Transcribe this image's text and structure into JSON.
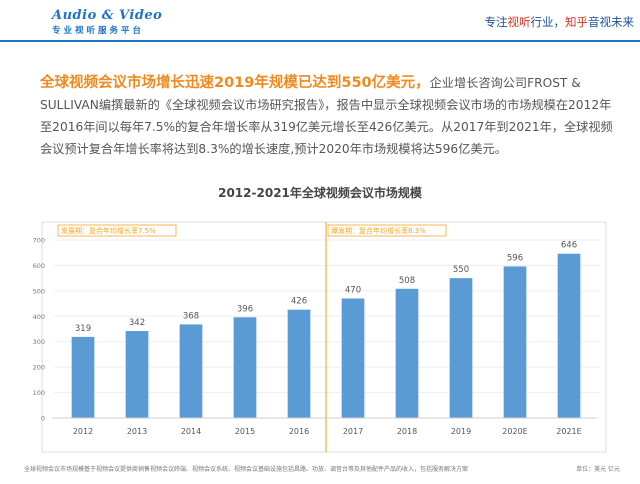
{
  "header": {
    "logo_top": "Audio & Video",
    "logo_bottom": "专业视听服务平台",
    "tagline_prefix": "专注",
    "tagline_red1": "视听",
    "tagline_mid": "行业，",
    "tagline_red2": "知乎",
    "tagline_suffix": "音视未来",
    "brand_color": "#1e73c8",
    "accent_red": "#e0301e"
  },
  "intro": {
    "highlight": "全球视频会议市场增长迅速2019年规模已达到550亿美元，",
    "body": "企业增长咨询公司FROST & SULLIVAN编撰最新的《全球视频会议市场研究报告》，报告中显示全球视频会议市场的市场规模在2012年至2016年间以每年7.5%的复合年增长率从319亿美元增长至426亿美元。从2017年到2021年，全球视频会议预计复合年增长率将达到8.3%的增长速度,预计2020年市场规模将达596亿美元。",
    "highlight_color": "#f08a1f"
  },
  "chart_data": {
    "type": "bar",
    "title": "2012-2021年全球视频会议市场规模",
    "categories": [
      "2012",
      "2013",
      "2014",
      "2015",
      "2016",
      "2017",
      "2018",
      "2019",
      "2020E",
      "2021E"
    ],
    "values": [
      319,
      342,
      368,
      396,
      426,
      470,
      508,
      550,
      596,
      646
    ],
    "ylim": [
      0,
      700
    ],
    "yticks": [
      0,
      100,
      200,
      300,
      400,
      500,
      600,
      700
    ],
    "grid": true,
    "xlabel": "",
    "ylabel": "",
    "bar_color": "#5b9bd5",
    "annotations": [
      {
        "text": "发展期：复合年均增长率7.5%",
        "start": 0
      },
      {
        "text": "爆发期：复合年均增长率8.3%",
        "start": 5
      }
    ],
    "annotation_color": "#f5a623",
    "divider_after_index": 4,
    "divider_color": "#f0b429"
  },
  "footer": {
    "note": "全球视频会议市场规模基于视频会议提供商销售视频会议终端、视频会议系统、视频会议基础设施包括昌路、功放、调音台等及其他配件产品的收入，包括服务解决方案",
    "unit": "单位：美元 亿元"
  }
}
